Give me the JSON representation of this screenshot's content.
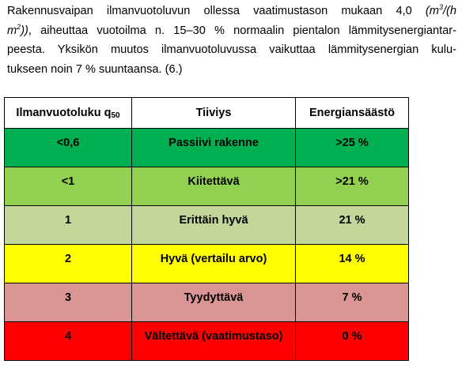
{
  "paragraph": {
    "line1_a": "Rakennusvaipan ilmanvuotoluvun ollessa vaatimustason mukaan 4,0 ",
    "line1_unit_a": "(m",
    "line1_unit_sup": "3",
    "line1_unit_b": "/(h",
    "line2_unit_a": "m",
    "line2_unit_sup": "2",
    "line2_unit_b": "))",
    "line2_rest": ", aiheuttaa vuotoilma n. 15–30 % normaalin pientalon lämmitysenergiantar-",
    "line3": "peesta. Yksikön muutos ilmanvuotoluvussa vaikuttaa lämmitysenergian kulu-",
    "line4": "tukseen noin 7 % suuntaansa. (6.)"
  },
  "table": {
    "headers": {
      "col1": "Ilmanvuotoluku q",
      "col1_sub": "50",
      "col2": "Tiiviys",
      "col3": "Energiansäästö"
    },
    "rows": [
      {
        "value": "<0,6",
        "tightness": "Passiivi rakenne",
        "saving": ">25 %",
        "color": "#00B050"
      },
      {
        "value": "<1",
        "tightness": "Kiitettävä",
        "saving": ">21 %",
        "color": "#92D050"
      },
      {
        "value": "1",
        "tightness": "Erittäin hyvä",
        "saving": "21 %",
        "color": "#C4D79B"
      },
      {
        "value": "2",
        "tightness": "Hyvä (vertailu arvo)",
        "saving": "14 %",
        "color": "#FFFF00"
      },
      {
        "value": "3",
        "tightness": "Tyydyttävä",
        "saving": "7 %",
        "color": "#DA9694"
      },
      {
        "value": "4",
        "tightness": "Vältettävä (vaatimustaso)",
        "saving": "0 %",
        "color": "#FF0000"
      }
    ]
  }
}
